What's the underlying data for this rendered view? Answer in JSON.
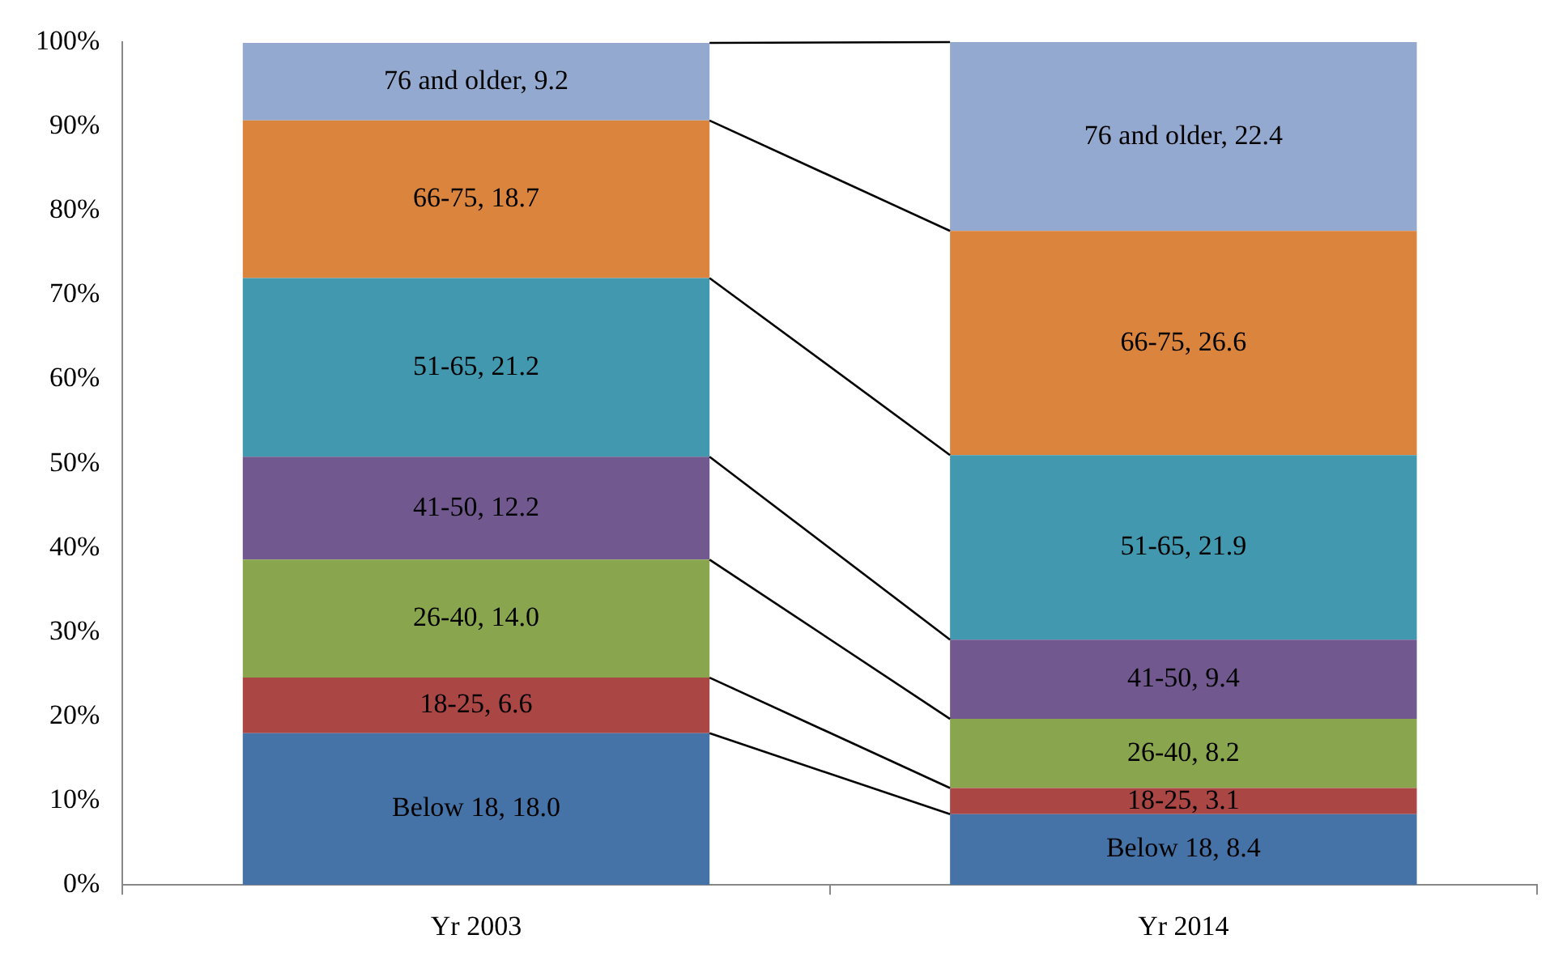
{
  "chart_data": {
    "type": "bar",
    "stacked": true,
    "categories": [
      "Yr 2003",
      "Yr 2014"
    ],
    "ylim": [
      0,
      100
    ],
    "yticks": [
      {
        "value": 0,
        "label": "0%"
      },
      {
        "value": 10,
        "label": "10%"
      },
      {
        "value": 20,
        "label": "20%"
      },
      {
        "value": 30,
        "label": "30%"
      },
      {
        "value": 40,
        "label": "40%"
      },
      {
        "value": 50,
        "label": "50%"
      },
      {
        "value": 60,
        "label": "60%"
      },
      {
        "value": 70,
        "label": "70%"
      },
      {
        "value": 80,
        "label": "80%"
      },
      {
        "value": 90,
        "label": "90%"
      },
      {
        "value": 100,
        "label": "100%"
      }
    ],
    "grid": false,
    "legend": false,
    "series": [
      {
        "color": "#4572a7",
        "values": [
          18.0,
          8.4
        ],
        "value_labels": [
          "Below 18, 18.0",
          "Below 18, 8.4"
        ]
      },
      {
        "color": "#aa4643",
        "values": [
          6.6,
          3.1
        ],
        "value_labels": [
          "18-25, 6.6",
          "18-25, 3.1"
        ]
      },
      {
        "color": "#89a54e",
        "values": [
          14.0,
          8.2
        ],
        "value_labels": [
          "26-40, 14.0",
          "26-40, 8.2"
        ]
      },
      {
        "color": "#71588f",
        "values": [
          12.2,
          9.4
        ],
        "value_labels": [
          "41-50, 12.2",
          "41-50, 9.4"
        ]
      },
      {
        "color": "#4198af",
        "values": [
          21.2,
          21.9
        ],
        "value_labels": [
          "51-65, 21.2",
          "51-65, 21.9"
        ]
      },
      {
        "color": "#db843d",
        "values": [
          18.7,
          26.6
        ],
        "value_labels": [
          "66-75, 18.7",
          "66-75, 26.6"
        ]
      },
      {
        "color": "#93a9cf",
        "values": [
          9.2,
          22.4
        ],
        "value_labels": [
          "76 and older, 9.2",
          "76 and older, 22.4"
        ]
      }
    ]
  }
}
